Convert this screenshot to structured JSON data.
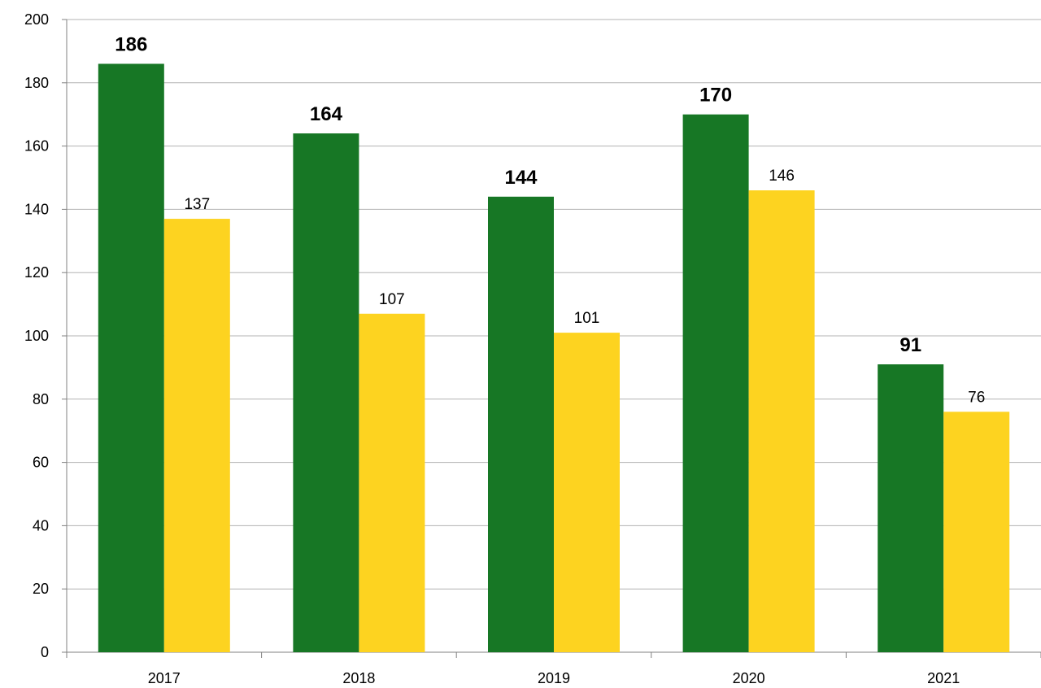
{
  "chart_data": {
    "type": "bar",
    "categories": [
      "2017",
      "2018",
      "2019",
      "2020",
      "2021"
    ],
    "series": [
      {
        "color": "#177725",
        "values": [
          186,
          164,
          144,
          170,
          91
        ]
      },
      {
        "color": "#fdd320",
        "values": [
          137,
          107,
          101,
          146,
          76
        ]
      }
    ],
    "ylim": [
      0,
      200
    ],
    "yticks": [
      0,
      20,
      40,
      60,
      80,
      100,
      120,
      140,
      160,
      180,
      200
    ],
    "grid": true
  }
}
